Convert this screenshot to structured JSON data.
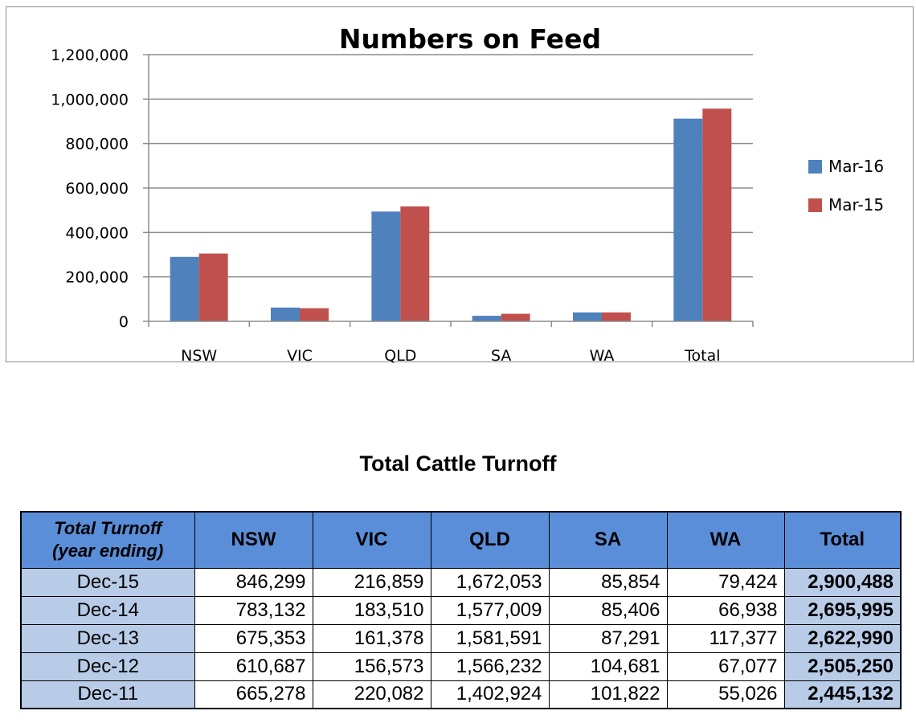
{
  "chart_data": {
    "type": "bar",
    "title": "Numbers on Feed",
    "categories": [
      "NSW",
      "VIC",
      "QLD",
      "SA",
      "WA",
      "Total"
    ],
    "series": [
      {
        "name": "Mar-16",
        "color": "#4f81bd",
        "values": [
          290000,
          62000,
          494000,
          25000,
          40000,
          912000
        ]
      },
      {
        "name": "Mar-15",
        "color": "#c0504d",
        "values": [
          305000,
          59000,
          517000,
          34000,
          40000,
          957000
        ]
      }
    ],
    "ylim": [
      0,
      1200000
    ],
    "yticks": [
      "0",
      "200,000",
      "400,000",
      "600,000",
      "800,000",
      "1,000,000",
      "1,200,000"
    ],
    "ytick_values": [
      0,
      200000,
      400000,
      600000,
      800000,
      1000000,
      1200000
    ],
    "grid": true,
    "legend": "right",
    "xlabel": "",
    "ylabel": ""
  },
  "table": {
    "title": "Total Cattle Turnoff",
    "corner_line1": "Total Turnoff",
    "corner_line2": "(year ending)",
    "columns": [
      "NSW",
      "VIC",
      "QLD",
      "SA",
      "WA",
      "Total"
    ],
    "header_color": "#5b8ed8",
    "label_color": "#b8cce8",
    "rows": [
      {
        "label": "Dec-15",
        "values": [
          "846,299",
          "216,859",
          "1,672,053",
          "85,854",
          "79,424",
          "2,900,488"
        ]
      },
      {
        "label": "Dec-14",
        "values": [
          "783,132",
          "183,510",
          "1,577,009",
          "85,406",
          "66,938",
          "2,695,995"
        ]
      },
      {
        "label": "Dec-13",
        "values": [
          "675,353",
          "161,378",
          "1,581,591",
          "87,291",
          "117,377",
          "2,622,990"
        ]
      },
      {
        "label": "Dec-12",
        "values": [
          "610,687",
          "156,573",
          "1,566,232",
          "104,681",
          "67,077",
          "2,505,250"
        ]
      },
      {
        "label": "Dec-11",
        "values": [
          "665,278",
          "220,082",
          "1,402,924",
          "101,822",
          "55,026",
          "2,445,132"
        ]
      }
    ]
  }
}
